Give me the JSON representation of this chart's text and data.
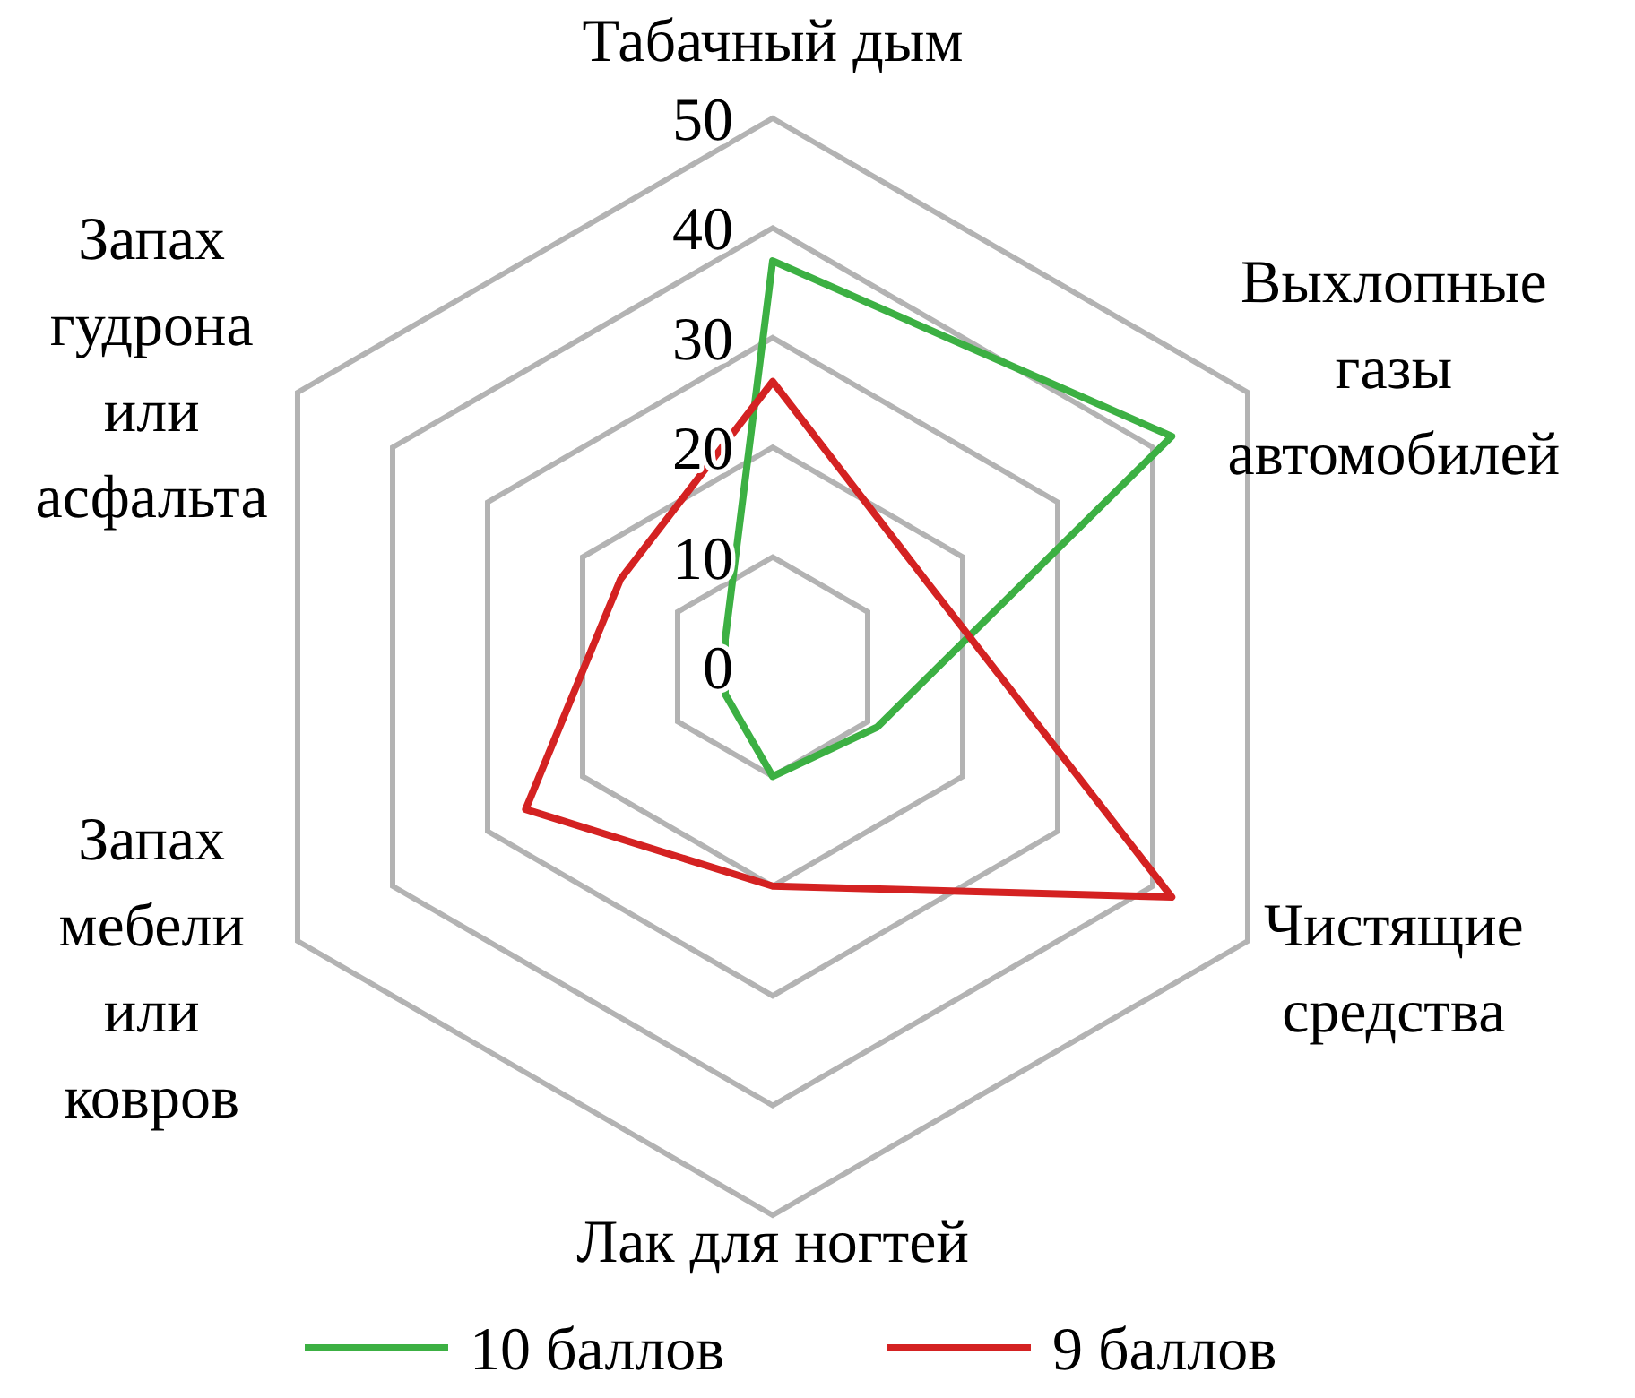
{
  "chart_data": {
    "type": "radar",
    "categories": [
      "Табачный дым",
      "Выхлопные газы автомобилей",
      "Чистящие средства",
      "Лак для ногтей",
      "Запах мебели или ковров",
      "Запах гудрона или асфальта"
    ],
    "series": [
      {
        "name": "10  баллов",
        "color": "#3cb043",
        "values": [
          37,
          42,
          11,
          10,
          5,
          5
        ]
      },
      {
        "name": "9 баллов",
        "color": "#d42222",
        "values": [
          26,
          16,
          42,
          20,
          26,
          16
        ]
      }
    ],
    "ylim": [
      0,
      50
    ],
    "yticks": [
      0,
      10,
      20,
      30,
      40,
      50
    ],
    "grid": true,
    "legend": "bottom"
  }
}
